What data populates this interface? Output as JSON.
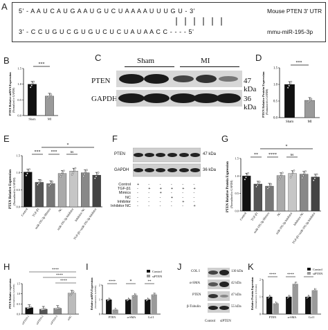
{
  "panel_labels": {
    "A": "A",
    "B": "B",
    "C": "C",
    "D": "D",
    "E": "E",
    "F": "F",
    "G": "G",
    "H": "H",
    "I": "I",
    "J": "J",
    "K": "K"
  },
  "panel_a": {
    "seq_top": "5' - A A U C A U G A A U G U C U A A A A U U U G U - 3'",
    "seq_bottom": "3' - C C U G U C G U G U C U C U A U A A C C - - - - 5'",
    "label_top": "Mouse PTEN 3' UTR",
    "label_bottom": "mmu-miR-195-3p"
  },
  "panel_b": {
    "ylabel": "PTEN Relative mRNA Expression",
    "ylabel2": "(Normalized to GAPDH)",
    "sig": "***",
    "xticks": [
      "Sham",
      "MI"
    ],
    "yticks": [
      "0.0",
      "0.5",
      "1.0",
      "1.5"
    ]
  },
  "panel_c": {
    "groups": [
      "Sham",
      "MI"
    ],
    "rows": [
      {
        "name": "PTEN",
        "kda": "47 kDa"
      },
      {
        "name": "GAPDH",
        "kda": "36 kDa"
      }
    ]
  },
  "panel_d": {
    "ylabel": "PTEN Relative Protein Expression",
    "ylabel2": "(Normalized to GAPDH)",
    "sig": "***",
    "xticks": [
      "Sham",
      "MI"
    ],
    "yticks": [
      "0.0",
      "0.5",
      "1.0",
      "1.5"
    ]
  },
  "panel_e": {
    "ylabel": "PTEN Relative Expression",
    "ylabel2": "(Normalized to GAPDH)",
    "sig": [
      "***",
      "***",
      "ns",
      "*"
    ],
    "xticks": [
      "Control",
      "TGF-β1",
      "miR-195-3p Mimics",
      "NC",
      "miR-195-3p Inhibitor",
      "Inhibitor NC",
      "TGF-β1+miR-195-3p Inhibitor"
    ],
    "yticks": [
      "0.0",
      "0.5",
      "1.0",
      "1.5"
    ]
  },
  "panel_f": {
    "rows": [
      {
        "name": "PTEN",
        "kda": "47 kDa"
      },
      {
        "name": "GAPDH",
        "kda": "36 kDa"
      }
    ],
    "conditions": [
      {
        "name": "Control",
        "marks": [
          "+",
          "-",
          "-",
          "-",
          "-",
          "-"
        ]
      },
      {
        "name": "TGF-β1",
        "marks": [
          "-",
          "+",
          "+",
          "+",
          "+",
          "+"
        ]
      },
      {
        "name": "Mimics",
        "marks": [
          "-",
          "-",
          "+",
          "-",
          "-",
          "-"
        ]
      },
      {
        "name": "NC",
        "marks": [
          "-",
          "-",
          "-",
          "+",
          "-",
          "-"
        ]
      },
      {
        "name": "Inhibitor",
        "marks": [
          "-",
          "-",
          "-",
          "-",
          "+",
          "-"
        ]
      },
      {
        "name": "Inhibitor NC",
        "marks": [
          "-",
          "-",
          "-",
          "-",
          "-",
          "+"
        ]
      }
    ]
  },
  "panel_g": {
    "ylabel": "PTEN Relative Protein Expression",
    "ylabel2": "(Normalized to GAPDH)",
    "sig": [
      "**",
      "****",
      "ns",
      "*"
    ],
    "xticks": [
      "Control",
      "TGF-β1",
      "miR-195-3p Mimics",
      "NC",
      "miR-195-3p Inhibitor",
      "Inhibitor NC",
      "TGF-β1+miR-195-3p Inhibitor"
    ],
    "yticks": [
      "0.0",
      "0.5",
      "1.0",
      "1.5"
    ]
  },
  "panel_h": {
    "ylabel": "PTEN Relative expression",
    "ylabel2": "(Normalized to GAPDH)",
    "sig": [
      "****",
      "****",
      "****"
    ],
    "xticks": [
      "siPTEN-1",
      "siPTEN-2",
      "siPTEN-3",
      "siNC"
    ],
    "yticks": [
      "0.0",
      "0.5",
      "1.0",
      "1.5"
    ]
  },
  "panel_i": {
    "ylabel": "Relative mRNA Expression",
    "ylabel2": "(Normalized to GAPDH)",
    "legend": [
      "Control",
      "siPTEN"
    ],
    "sig": [
      "****",
      "*",
      "**"
    ],
    "xticks": [
      "PTEN",
      "α-SMA",
      "Col I"
    ],
    "yticks": [
      "0",
      "1",
      "2"
    ]
  },
  "panel_j": {
    "rows": [
      {
        "name": "COL I",
        "kda": "130 kDa"
      },
      {
        "name": "α-SMA",
        "kda": "42 kDa"
      },
      {
        "name": "PTEN",
        "kda": "47 kDa"
      },
      {
        "name": "β-Tubulin",
        "kda": "55 kDa"
      }
    ],
    "groups": [
      "Control",
      "siPTEN"
    ]
  },
  "panel_k": {
    "ylabel": "Relative Protein Expression",
    "ylabel2": "(Normalized to β-Tubulin)",
    "legend": [
      "Control",
      "siPTEN"
    ],
    "sig": [
      "****",
      "****",
      "**"
    ],
    "xticks": [
      "PTEN",
      "α-SMA",
      "Col I"
    ],
    "yticks": [
      "0",
      "1",
      "2"
    ]
  },
  "chart_data": [
    {
      "panel": "B",
      "type": "bar",
      "categories": [
        "Sham",
        "MI"
      ],
      "values": [
        1.0,
        0.62
      ],
      "ylim": [
        0,
        1.5
      ],
      "colors": [
        "#111111",
        "#9a9a9a"
      ]
    },
    {
      "panel": "D",
      "type": "bar",
      "categories": [
        "Sham",
        "MI"
      ],
      "values": [
        1.0,
        0.52
      ],
      "ylim": [
        0,
        1.5
      ],
      "colors": [
        "#111111",
        "#9a9a9a"
      ]
    },
    {
      "panel": "E",
      "type": "bar",
      "categories": [
        "Control",
        "TGF-β1",
        "miR-195-3p Mimics",
        "NC",
        "miR-195-3p Inhibitor",
        "Inhibitor NC",
        "TGF-β1+miR-195-3p Inhibitor"
      ],
      "values": [
        1.02,
        0.72,
        0.68,
        0.98,
        1.05,
        1.0,
        0.93
      ],
      "ylim": [
        0,
        1.5
      ]
    },
    {
      "panel": "G",
      "type": "bar",
      "categories": [
        "Control",
        "TGF-β1",
        "miR-195-3p Mimics",
        "NC",
        "miR-195-3p Inhibitor",
        "Inhibitor NC",
        "TGF-β1+miR-195-3p Inhibitor"
      ],
      "values": [
        1.0,
        0.77,
        0.71,
        1.01,
        1.07,
        1.05,
        0.97
      ],
      "ylim": [
        0,
        1.5
      ]
    },
    {
      "panel": "H",
      "type": "bar",
      "categories": [
        "siPTEN-1",
        "siPTEN-2",
        "siPTEN-3",
        "siNC"
      ],
      "values": [
        0.32,
        0.24,
        0.28,
        1.03
      ],
      "ylim": [
        0,
        1.5
      ]
    },
    {
      "panel": "I",
      "type": "bar",
      "categories": [
        "PTEN",
        "α-SMA",
        "Col I"
      ],
      "series": [
        {
          "name": "Control",
          "values": [
            1.0,
            1.0,
            1.0
          ]
        },
        {
          "name": "siPTEN",
          "values": [
            0.3,
            1.3,
            1.35
          ]
        }
      ],
      "ylim": [
        0,
        2
      ]
    },
    {
      "panel": "K",
      "type": "bar",
      "categories": [
        "PTEN",
        "α-SMA",
        "Col I"
      ],
      "series": [
        {
          "name": "Control",
          "values": [
            1.0,
            1.0,
            1.0
          ]
        },
        {
          "name": "siPTEN",
          "values": [
            0.62,
            1.75,
            1.38
          ]
        }
      ],
      "ylim": [
        0,
        2
      ]
    }
  ]
}
